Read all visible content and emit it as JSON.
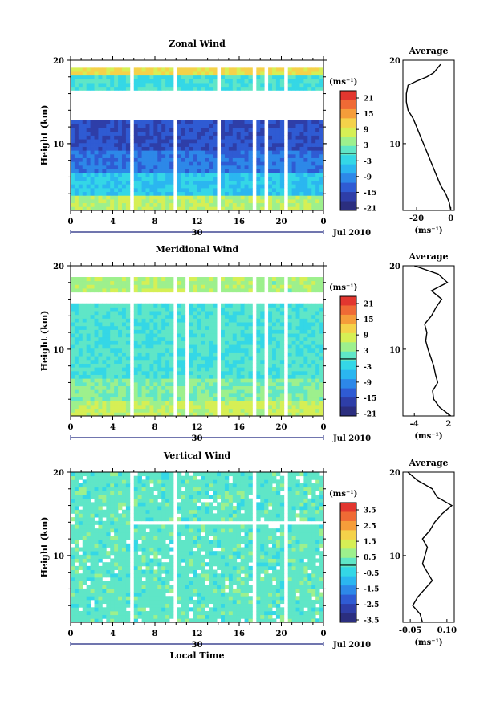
{
  "chart_data": [
    {
      "type": "heatmap",
      "title": "Zonal Wind",
      "ylabel": "Height (km)",
      "ylim": [
        2,
        20
      ],
      "xlim": [
        0,
        24
      ],
      "x_ticks": [
        "0",
        "4",
        "8",
        "12",
        "16",
        "20",
        "0"
      ],
      "y_ticks": [
        "10",
        "20"
      ],
      "date_label": "Jul 2010",
      "date_tick": "30",
      "unit": "(ms⁻¹)",
      "colorbar": {
        "ticks": [
          "21",
          "15",
          "9",
          "3",
          "-3",
          "-9",
          "-15",
          "-21"
        ],
        "min": -24,
        "max": 24
      },
      "profile": {
        "title": "Average",
        "xlabel": "(ms⁻¹)",
        "xlim": [
          -28,
          2
        ],
        "x_ticks": [
          "-20",
          "0"
        ],
        "y_ticks": [
          "10",
          "20"
        ],
        "heights": [
          2,
          3,
          4,
          5,
          6,
          7,
          8,
          9,
          10,
          11,
          12,
          13,
          14,
          15,
          16,
          17,
          17.5,
          18,
          18.5,
          19,
          19.5
        ],
        "values": [
          0,
          -1,
          -3,
          -6,
          -8,
          -10,
          -12,
          -14,
          -16,
          -18,
          -20,
          -22,
          -25,
          -26,
          -26,
          -25,
          -20,
          -14,
          -10,
          -8,
          -6
        ]
      },
      "gaps_hours": [
        5.8,
        9.8,
        14.0,
        17.5,
        18.7,
        20.5
      ]
    },
    {
      "type": "heatmap",
      "title": "Meridional Wind",
      "ylabel": "Height (km)",
      "ylim": [
        2,
        20
      ],
      "xlim": [
        0,
        24
      ],
      "x_ticks": [
        "0",
        "4",
        "8",
        "12",
        "16",
        "20",
        "0"
      ],
      "y_ticks": [
        "10",
        "20"
      ],
      "date_label": "Jul 2010",
      "date_tick": "30",
      "unit": "(ms⁻¹)",
      "colorbar": {
        "ticks": [
          "21",
          "15",
          "9",
          "3",
          "-3",
          "-9",
          "-15",
          "-21"
        ],
        "min": -24,
        "max": 24
      },
      "profile": {
        "title": "Average",
        "xlabel": "(ms⁻¹)",
        "xlim": [
          -6,
          3
        ],
        "x_ticks": [
          "-4",
          "2"
        ],
        "y_ticks": [
          "10",
          "20"
        ],
        "heights": [
          2,
          3,
          4,
          5,
          6,
          7,
          8,
          9,
          10,
          11,
          12,
          13,
          14,
          15,
          16,
          17,
          18,
          19,
          20
        ],
        "values": [
          2.4,
          0.5,
          -0.6,
          -0.8,
          0.1,
          -0.3,
          -0.6,
          -1.1,
          -1.6,
          -2.0,
          -1.8,
          -2.2,
          -1.0,
          -0.2,
          0.8,
          -1.0,
          1.8,
          0.2,
          -4.0
        ]
      },
      "gaps_hours": [
        5.8,
        9.8,
        11.2,
        14.0,
        17.5,
        18.7,
        20.5
      ]
    },
    {
      "type": "heatmap",
      "title": "Vertical Wind",
      "ylabel": "Height (km)",
      "xlabel": "Local Time",
      "ylim": [
        2,
        20
      ],
      "xlim": [
        0,
        24
      ],
      "x_ticks": [
        "0",
        "4",
        "8",
        "12",
        "16",
        "20",
        "0"
      ],
      "y_ticks": [
        "10",
        "20"
      ],
      "date_label": "Jul 2010",
      "date_tick": "30",
      "unit": "(ms⁻¹)",
      "colorbar": {
        "ticks": [
          "3.5",
          "2.5",
          "1.5",
          "0.5",
          "-0.5",
          "-1.5",
          "-2.5",
          "-3.5"
        ],
        "min": -4,
        "max": 4
      },
      "profile": {
        "title": "Average",
        "xlabel": "(ms⁻¹)",
        "xlim": [
          -0.08,
          0.13
        ],
        "x_ticks": [
          "-0.05",
          "0.10"
        ],
        "y_ticks": [
          "10",
          "20"
        ],
        "heights": [
          2,
          3,
          4,
          5,
          6,
          7,
          8,
          9,
          10,
          11,
          12,
          13,
          14,
          15,
          16,
          17,
          18,
          19,
          20
        ],
        "values": [
          0.0,
          -0.01,
          -0.04,
          -0.02,
          0.01,
          0.04,
          0.02,
          0.0,
          0.01,
          0.02,
          0.0,
          0.03,
          0.05,
          0.08,
          0.12,
          0.06,
          0.04,
          -0.02,
          -0.06
        ]
      },
      "gaps_hours": [
        5.8,
        9.8,
        17.5,
        20.5
      ]
    }
  ],
  "colors": {
    "palette": [
      "#2b2e7f",
      "#2e3ea8",
      "#2f5bd3",
      "#2d88e8",
      "#2bb6f0",
      "#34d7e6",
      "#5fe6c7",
      "#9df08d",
      "#d6ef55",
      "#f4d24a",
      "#f59d3a",
      "#ef6a35",
      "#e2362f"
    ]
  }
}
